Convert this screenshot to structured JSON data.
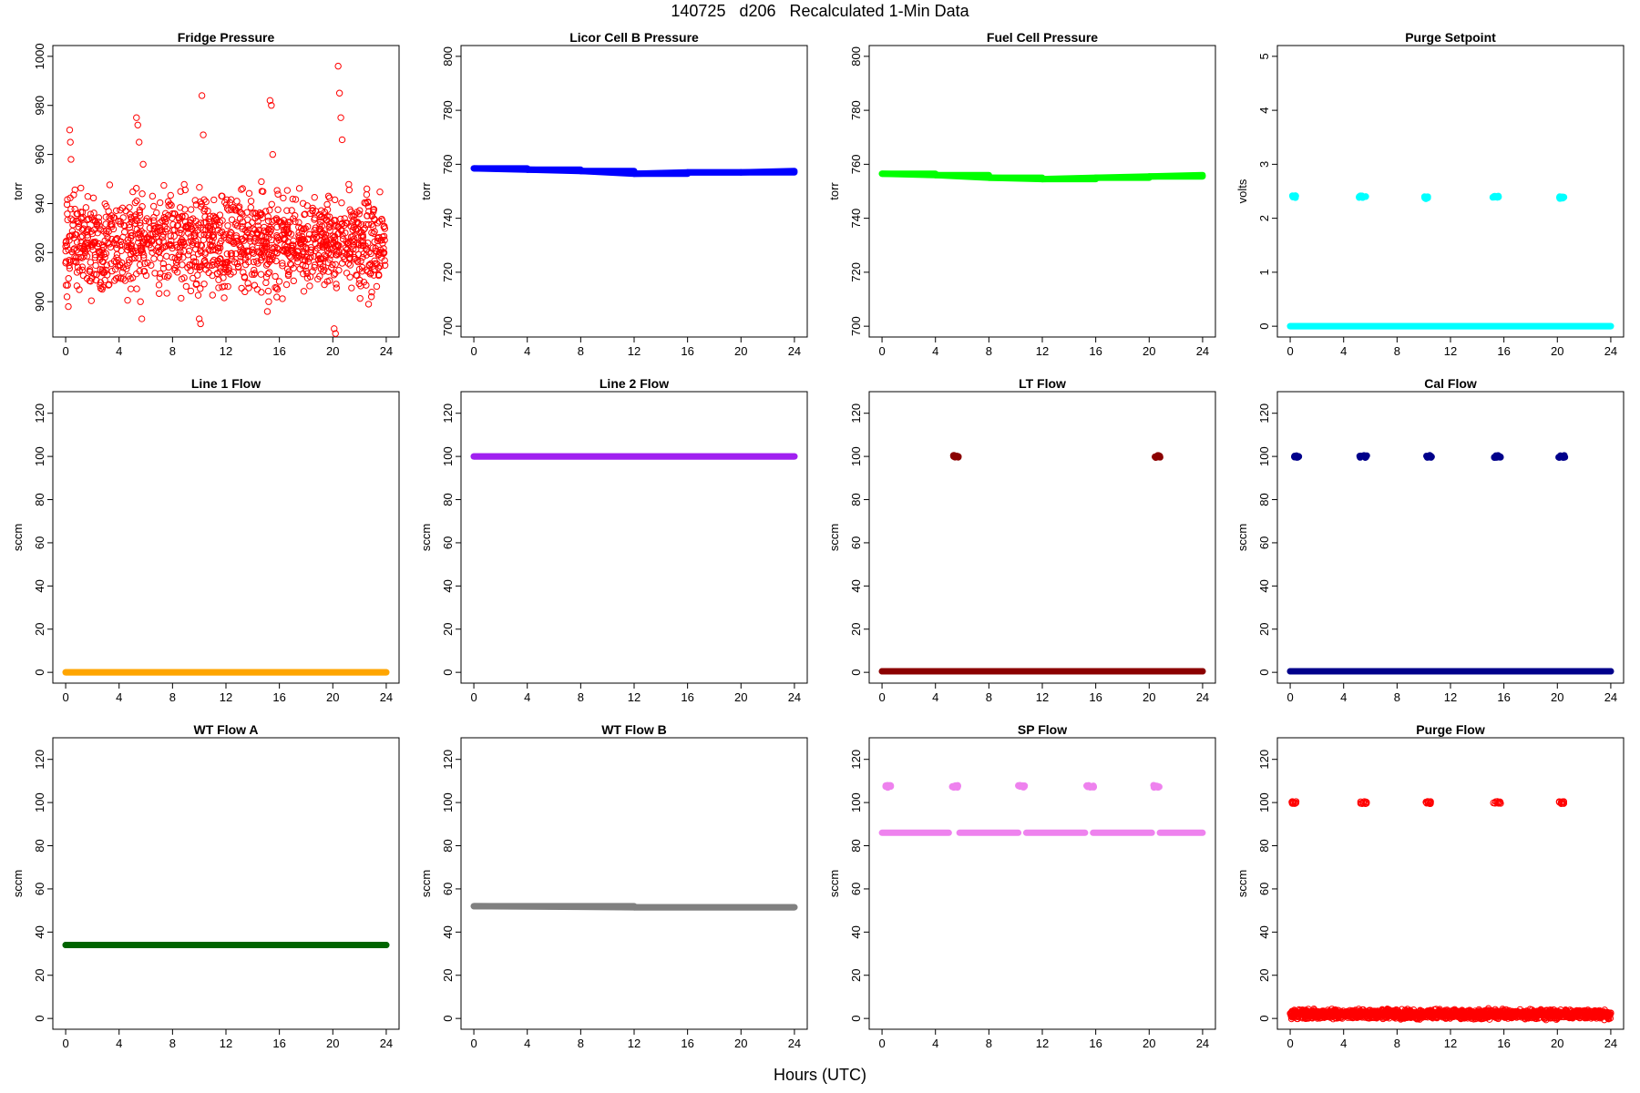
{
  "title": "140725   d206   Recalculated 1-Min Data",
  "xlabel": "Hours (UTC)",
  "chart_data": [
    {
      "type": "scatter",
      "title": "Fridge Pressure",
      "ylabel": "torr",
      "color": "#ff0000",
      "marker": "open-circle",
      "xlim": [
        0,
        24
      ],
      "ylim": [
        890,
        1000
      ],
      "xticks": [
        0,
        4,
        8,
        12,
        16,
        20,
        24
      ],
      "yticks": [
        900,
        920,
        940,
        960,
        980,
        1000
      ],
      "baseline": [
        {
          "from": 0,
          "to": 24,
          "y": 924,
          "spread": 14,
          "density": 55
        }
      ],
      "points": [
        [
          0.1,
          902
        ],
        [
          0.2,
          898
        ],
        [
          0.3,
          970
        ],
        [
          0.35,
          965
        ],
        [
          0.4,
          958
        ],
        [
          5.3,
          975
        ],
        [
          5.4,
          972
        ],
        [
          5.5,
          965
        ],
        [
          5.6,
          900
        ],
        [
          5.7,
          893
        ],
        [
          5.8,
          956
        ],
        [
          10,
          893
        ],
        [
          10.1,
          891
        ],
        [
          10.2,
          984
        ],
        [
          10.3,
          968
        ],
        [
          15.3,
          982
        ],
        [
          15.4,
          980
        ],
        [
          15.5,
          960
        ],
        [
          15.2,
          900
        ],
        [
          15.1,
          896
        ],
        [
          20.1,
          889
        ],
        [
          20.2,
          887
        ],
        [
          20.4,
          996
        ],
        [
          20.5,
          985
        ],
        [
          20.6,
          975
        ],
        [
          20.7,
          966
        ]
      ],
      "style": "open"
    },
    {
      "type": "scatter",
      "title": "Licor Cell B Pressure",
      "ylabel": "torr",
      "color": "#0000ff",
      "marker": "filled-circle",
      "xlim": [
        0,
        24
      ],
      "ylim": [
        700,
        800
      ],
      "xticks": [
        0,
        4,
        8,
        12,
        16,
        20,
        24
      ],
      "yticks": [
        700,
        720,
        740,
        760,
        780,
        800
      ],
      "line": [
        [
          0,
          758.5
        ],
        [
          4,
          758
        ],
        [
          8,
          757.5
        ],
        [
          12,
          756.5
        ],
        [
          16,
          757
        ],
        [
          20,
          757
        ],
        [
          24,
          757.5
        ]
      ]
    },
    {
      "type": "scatter",
      "title": "Fuel Cell Pressure",
      "ylabel": "torr",
      "color": "#00ff00",
      "marker": "filled-circle",
      "xlim": [
        0,
        24
      ],
      "ylim": [
        700,
        800
      ],
      "xticks": [
        0,
        4,
        8,
        12,
        16,
        20,
        24
      ],
      "yticks": [
        700,
        720,
        740,
        760,
        780,
        800
      ],
      "line": [
        [
          0,
          756.5
        ],
        [
          4,
          756
        ],
        [
          8,
          755
        ],
        [
          12,
          754.5
        ],
        [
          16,
          755
        ],
        [
          20,
          755.5
        ],
        [
          24,
          756
        ]
      ]
    },
    {
      "type": "scatter",
      "title": "Purge Setpoint",
      "ylabel": "volts",
      "color": "#00ffff",
      "marker": "filled-circle",
      "xlim": [
        0,
        24
      ],
      "ylim": [
        0,
        5
      ],
      "xticks": [
        0,
        4,
        8,
        12,
        16,
        20,
        24
      ],
      "yticks": [
        0,
        1,
        2,
        3,
        4,
        5
      ],
      "line": [
        [
          0,
          0
        ],
        [
          24,
          0
        ]
      ],
      "clusters": [
        [
          0.2,
          2.4,
          0.3
        ],
        [
          5.2,
          2.4,
          0.6
        ],
        [
          10.1,
          2.38,
          0.3
        ],
        [
          15.2,
          2.4,
          0.5
        ],
        [
          20.2,
          2.38,
          0.4
        ]
      ]
    },
    {
      "type": "scatter",
      "title": "Line 1 Flow",
      "ylabel": "sccm",
      "color": "#ffa500",
      "marker": "filled-circle",
      "xlim": [
        0,
        24
      ],
      "ylim": [
        0,
        125
      ],
      "xticks": [
        0,
        4,
        8,
        12,
        16,
        20,
        24
      ],
      "yticks": [
        0,
        20,
        40,
        60,
        80,
        100,
        120
      ],
      "line": [
        [
          0,
          0
        ],
        [
          24,
          0
        ]
      ]
    },
    {
      "type": "scatter",
      "title": "Line 2 Flow",
      "ylabel": "sccm",
      "color": "#a020f0",
      "marker": "filled-circle",
      "xlim": [
        0,
        24
      ],
      "ylim": [
        0,
        125
      ],
      "xticks": [
        0,
        4,
        8,
        12,
        16,
        20,
        24
      ],
      "yticks": [
        0,
        20,
        40,
        60,
        80,
        100,
        120
      ],
      "line": [
        [
          0,
          100
        ],
        [
          24,
          100
        ]
      ]
    },
    {
      "type": "scatter",
      "title": "LT Flow",
      "ylabel": "sccm",
      "color": "#8b0000",
      "marker": "filled-circle",
      "xlim": [
        0,
        24
      ],
      "ylim": [
        0,
        125
      ],
      "xticks": [
        0,
        4,
        8,
        12,
        16,
        20,
        24
      ],
      "yticks": [
        0,
        20,
        40,
        60,
        80,
        100,
        120
      ],
      "line": [
        [
          0,
          0.5
        ],
        [
          24,
          0.5
        ]
      ],
      "clusters": [
        [
          5.4,
          100,
          0.4
        ],
        [
          20.5,
          100,
          0.4
        ]
      ]
    },
    {
      "type": "scatter",
      "title": "Cal Flow",
      "ylabel": "sccm",
      "color": "#00008b",
      "marker": "filled-circle",
      "xlim": [
        0,
        24
      ],
      "ylim": [
        0,
        125
      ],
      "xticks": [
        0,
        4,
        8,
        12,
        16,
        20,
        24
      ],
      "yticks": [
        0,
        20,
        40,
        60,
        80,
        100,
        120
      ],
      "line": [
        [
          0,
          0.5
        ],
        [
          24,
          0.5
        ]
      ],
      "clusters": [
        [
          0.3,
          100,
          0.5
        ],
        [
          5.3,
          100,
          0.7
        ],
        [
          10.2,
          100,
          0.5
        ],
        [
          15.3,
          100,
          0.6
        ],
        [
          20.2,
          100,
          0.5
        ]
      ]
    },
    {
      "type": "scatter",
      "title": "WT Flow A",
      "ylabel": "sccm",
      "color": "#006400",
      "marker": "filled-circle",
      "xlim": [
        0,
        24
      ],
      "ylim": [
        0,
        125
      ],
      "xticks": [
        0,
        4,
        8,
        12,
        16,
        20,
        24
      ],
      "yticks": [
        0,
        20,
        40,
        60,
        80,
        100,
        120
      ],
      "line": [
        [
          0,
          34
        ],
        [
          24,
          34
        ]
      ]
    },
    {
      "type": "scatter",
      "title": "WT Flow B",
      "ylabel": "sccm",
      "color": "#808080",
      "marker": "filled-circle",
      "xlim": [
        0,
        24
      ],
      "ylim": [
        0,
        125
      ],
      "xticks": [
        0,
        4,
        8,
        12,
        16,
        20,
        24
      ],
      "yticks": [
        0,
        20,
        40,
        60,
        80,
        100,
        120
      ],
      "line": [
        [
          0,
          52
        ],
        [
          12,
          51.5
        ],
        [
          24,
          51.5
        ]
      ]
    },
    {
      "type": "scatter",
      "title": "SP Flow",
      "ylabel": "sccm",
      "color": "#ee82ee",
      "marker": "filled-circle",
      "xlim": [
        0,
        24
      ],
      "ylim": [
        0,
        125
      ],
      "xticks": [
        0,
        4,
        8,
        12,
        16,
        20,
        24
      ],
      "yticks": [
        0,
        20,
        40,
        60,
        80,
        100,
        120
      ],
      "segments": [
        [
          0,
          5,
          86
        ],
        [
          5.8,
          10.2,
          86
        ],
        [
          10.8,
          15.2,
          86
        ],
        [
          15.8,
          20.2,
          86
        ],
        [
          20.8,
          24,
          86
        ]
      ],
      "clusters": [
        [
          0.3,
          107.5,
          0.5
        ],
        [
          5.4,
          107.5,
          0.7
        ],
        [
          10.3,
          107.5,
          0.5
        ],
        [
          15.4,
          107.5,
          0.6
        ],
        [
          20.4,
          107.5,
          0.6
        ]
      ]
    },
    {
      "type": "scatter",
      "title": "Purge Flow",
      "ylabel": "sccm",
      "color": "#ff0000",
      "marker": "open-circle",
      "xlim": [
        0,
        24
      ],
      "ylim": [
        0,
        125
      ],
      "xticks": [
        0,
        4,
        8,
        12,
        16,
        20,
        24
      ],
      "yticks": [
        0,
        20,
        40,
        60,
        80,
        100,
        120
      ],
      "baseline": [
        {
          "from": 0,
          "to": 24,
          "y": 2,
          "spread": 1.5,
          "density": 80
        }
      ],
      "clusters": [
        [
          0.2,
          100,
          0.4
        ],
        [
          5.3,
          100,
          0.6
        ],
        [
          10.2,
          100,
          0.4
        ],
        [
          15.3,
          100,
          0.6
        ],
        [
          20.2,
          100,
          0.4
        ]
      ],
      "style": "open"
    }
  ]
}
